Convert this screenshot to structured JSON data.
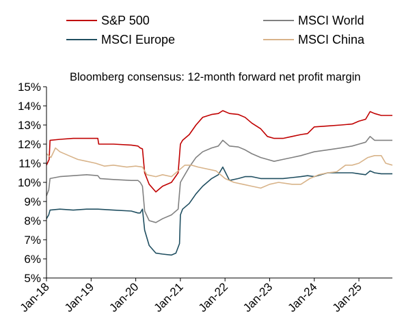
{
  "chart_data": {
    "type": "line",
    "title": "Bloomberg consensus: 12-month forward net profit margin",
    "xlabel": "",
    "ylabel": "",
    "ylim": [
      5,
      15
    ],
    "y_ticks": [
      "5%",
      "6%",
      "7%",
      "8%",
      "9%",
      "10%",
      "11%",
      "12%",
      "13%",
      "14%",
      "15%"
    ],
    "x_ticks": [
      "Jan-18",
      "Jan-19",
      "Jan-20",
      "Jan-21",
      "Jan-22",
      "Jan-23",
      "Jan-24",
      "Jan-25"
    ],
    "xlim": [
      2018.0,
      2025.75
    ],
    "grid": false,
    "legend_position": "top",
    "series": [
      {
        "name": "S&P 500",
        "color": "#c00000",
        "points": [
          [
            2018.0,
            10.9
          ],
          [
            2018.06,
            11.2
          ],
          [
            2018.08,
            12.2
          ],
          [
            2018.3,
            12.25
          ],
          [
            2018.6,
            12.3
          ],
          [
            2018.9,
            12.3
          ],
          [
            2019.15,
            12.3
          ],
          [
            2019.17,
            12.0
          ],
          [
            2019.5,
            12.0
          ],
          [
            2019.9,
            11.95
          ],
          [
            2020.05,
            11.9
          ],
          [
            2020.1,
            11.8
          ],
          [
            2020.15,
            11.75
          ],
          [
            2020.2,
            10.5
          ],
          [
            2020.3,
            9.9
          ],
          [
            2020.45,
            9.5
          ],
          [
            2020.6,
            9.8
          ],
          [
            2020.8,
            10.0
          ],
          [
            2020.95,
            10.5
          ],
          [
            2021.0,
            12.0
          ],
          [
            2021.05,
            12.2
          ],
          [
            2021.2,
            12.5
          ],
          [
            2021.35,
            13.0
          ],
          [
            2021.5,
            13.4
          ],
          [
            2021.7,
            13.55
          ],
          [
            2021.85,
            13.6
          ],
          [
            2021.95,
            13.75
          ],
          [
            2022.1,
            13.6
          ],
          [
            2022.3,
            13.55
          ],
          [
            2022.45,
            13.4
          ],
          [
            2022.6,
            13.1
          ],
          [
            2022.8,
            12.8
          ],
          [
            2022.95,
            12.4
          ],
          [
            2023.1,
            12.3
          ],
          [
            2023.3,
            12.3
          ],
          [
            2023.5,
            12.4
          ],
          [
            2023.7,
            12.5
          ],
          [
            2023.85,
            12.55
          ],
          [
            2024.0,
            12.9
          ],
          [
            2024.3,
            12.95
          ],
          [
            2024.6,
            13.0
          ],
          [
            2024.85,
            13.05
          ],
          [
            2025.0,
            13.2
          ],
          [
            2025.15,
            13.3
          ],
          [
            2025.25,
            13.7
          ],
          [
            2025.35,
            13.6
          ],
          [
            2025.5,
            13.5
          ],
          [
            2025.75,
            13.5
          ]
        ]
      },
      {
        "name": "MSCI World",
        "color": "#808080",
        "points": [
          [
            2018.0,
            9.3
          ],
          [
            2018.05,
            9.6
          ],
          [
            2018.08,
            10.2
          ],
          [
            2018.3,
            10.3
          ],
          [
            2018.6,
            10.35
          ],
          [
            2018.9,
            10.4
          ],
          [
            2019.15,
            10.35
          ],
          [
            2019.2,
            10.2
          ],
          [
            2019.5,
            10.15
          ],
          [
            2019.9,
            10.1
          ],
          [
            2020.05,
            10.1
          ],
          [
            2020.1,
            10.0
          ],
          [
            2020.15,
            9.8
          ],
          [
            2020.2,
            8.5
          ],
          [
            2020.3,
            8.0
          ],
          [
            2020.45,
            7.9
          ],
          [
            2020.6,
            8.1
          ],
          [
            2020.8,
            8.3
          ],
          [
            2020.95,
            8.6
          ],
          [
            2021.0,
            10.0
          ],
          [
            2021.05,
            10.2
          ],
          [
            2021.2,
            10.8
          ],
          [
            2021.35,
            11.3
          ],
          [
            2021.5,
            11.6
          ],
          [
            2021.7,
            11.8
          ],
          [
            2021.85,
            11.9
          ],
          [
            2021.95,
            12.2
          ],
          [
            2022.1,
            11.9
          ],
          [
            2022.3,
            11.85
          ],
          [
            2022.45,
            11.7
          ],
          [
            2022.6,
            11.5
          ],
          [
            2022.8,
            11.3
          ],
          [
            2022.95,
            11.2
          ],
          [
            2023.1,
            11.1
          ],
          [
            2023.3,
            11.2
          ],
          [
            2023.5,
            11.3
          ],
          [
            2023.7,
            11.4
          ],
          [
            2023.85,
            11.5
          ],
          [
            2024.0,
            11.6
          ],
          [
            2024.3,
            11.7
          ],
          [
            2024.6,
            11.8
          ],
          [
            2024.85,
            11.9
          ],
          [
            2025.0,
            12.0
          ],
          [
            2025.15,
            12.1
          ],
          [
            2025.25,
            12.4
          ],
          [
            2025.35,
            12.2
          ],
          [
            2025.5,
            12.2
          ],
          [
            2025.75,
            12.2
          ]
        ]
      },
      {
        "name": "MSCI Europe",
        "color": "#1f4e60",
        "points": [
          [
            2018.0,
            8.1
          ],
          [
            2018.05,
            8.3
          ],
          [
            2018.08,
            8.55
          ],
          [
            2018.3,
            8.6
          ],
          [
            2018.6,
            8.55
          ],
          [
            2018.9,
            8.6
          ],
          [
            2019.15,
            8.6
          ],
          [
            2019.5,
            8.55
          ],
          [
            2019.9,
            8.5
          ],
          [
            2020.05,
            8.4
          ],
          [
            2020.1,
            8.4
          ],
          [
            2020.15,
            8.6
          ],
          [
            2020.2,
            7.5
          ],
          [
            2020.3,
            6.7
          ],
          [
            2020.45,
            6.3
          ],
          [
            2020.6,
            6.25
          ],
          [
            2020.8,
            6.2
          ],
          [
            2020.9,
            6.3
          ],
          [
            2020.98,
            6.8
          ],
          [
            2021.0,
            8.3
          ],
          [
            2021.05,
            8.6
          ],
          [
            2021.2,
            8.9
          ],
          [
            2021.35,
            9.4
          ],
          [
            2021.5,
            9.8
          ],
          [
            2021.7,
            10.2
          ],
          [
            2021.85,
            10.4
          ],
          [
            2021.95,
            10.8
          ],
          [
            2022.1,
            10.1
          ],
          [
            2022.3,
            10.2
          ],
          [
            2022.45,
            10.3
          ],
          [
            2022.6,
            10.3
          ],
          [
            2022.8,
            10.2
          ],
          [
            2022.95,
            10.2
          ],
          [
            2023.1,
            10.2
          ],
          [
            2023.3,
            10.2
          ],
          [
            2023.5,
            10.25
          ],
          [
            2023.7,
            10.3
          ],
          [
            2023.85,
            10.35
          ],
          [
            2024.0,
            10.3
          ],
          [
            2024.3,
            10.5
          ],
          [
            2024.6,
            10.5
          ],
          [
            2024.85,
            10.5
          ],
          [
            2025.0,
            10.45
          ],
          [
            2025.15,
            10.4
          ],
          [
            2025.25,
            10.6
          ],
          [
            2025.35,
            10.5
          ],
          [
            2025.5,
            10.45
          ],
          [
            2025.75,
            10.45
          ]
        ]
      },
      {
        "name": "MSCI China",
        "color": "#d8b389",
        "points": [
          [
            2018.0,
            11.5
          ],
          [
            2018.1,
            11.3
          ],
          [
            2018.2,
            11.8
          ],
          [
            2018.3,
            11.6
          ],
          [
            2018.5,
            11.4
          ],
          [
            2018.7,
            11.2
          ],
          [
            2018.9,
            11.1
          ],
          [
            2019.1,
            11.0
          ],
          [
            2019.3,
            10.85
          ],
          [
            2019.5,
            10.9
          ],
          [
            2019.8,
            10.8
          ],
          [
            2020.0,
            10.85
          ],
          [
            2020.15,
            10.8
          ],
          [
            2020.25,
            10.4
          ],
          [
            2020.45,
            10.3
          ],
          [
            2020.6,
            10.4
          ],
          [
            2020.8,
            10.3
          ],
          [
            2020.95,
            10.6
          ],
          [
            2021.1,
            10.9
          ],
          [
            2021.25,
            10.9
          ],
          [
            2021.4,
            10.8
          ],
          [
            2021.6,
            10.7
          ],
          [
            2021.8,
            10.6
          ],
          [
            2022.0,
            10.2
          ],
          [
            2022.2,
            10.0
          ],
          [
            2022.4,
            9.9
          ],
          [
            2022.6,
            9.8
          ],
          [
            2022.8,
            9.7
          ],
          [
            2023.0,
            9.9
          ],
          [
            2023.2,
            10.0
          ],
          [
            2023.5,
            9.9
          ],
          [
            2023.7,
            9.9
          ],
          [
            2023.9,
            10.2
          ],
          [
            2024.1,
            10.4
          ],
          [
            2024.3,
            10.5
          ],
          [
            2024.5,
            10.55
          ],
          [
            2024.7,
            10.9
          ],
          [
            2024.85,
            10.9
          ],
          [
            2025.0,
            11.0
          ],
          [
            2025.2,
            11.3
          ],
          [
            2025.35,
            11.4
          ],
          [
            2025.5,
            11.4
          ],
          [
            2025.6,
            11.0
          ],
          [
            2025.75,
            10.9
          ]
        ]
      }
    ]
  }
}
